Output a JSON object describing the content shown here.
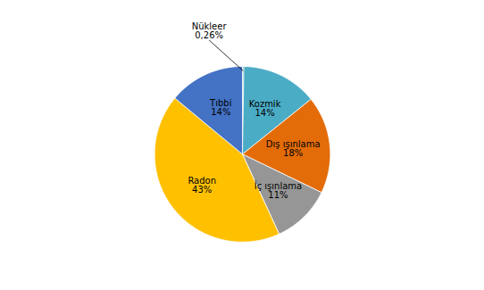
{
  "chart_data": {
    "type": "pie",
    "categories": [
      "Nükleer",
      "Kozmik",
      "Dış ışınlama",
      "İç ışınlama",
      "Radon",
      "Tıbbi"
    ],
    "values": [
      0.26,
      14,
      18,
      11,
      43,
      14
    ],
    "value_labels": [
      "0,26%",
      "14%",
      "18%",
      "11%",
      "43%",
      "14%"
    ],
    "colors": [
      "#2DA0A0",
      "#4BACC6",
      "#E36C09",
      "#969696",
      "#FFC000",
      "#4472C4"
    ],
    "data_labels": true
  }
}
